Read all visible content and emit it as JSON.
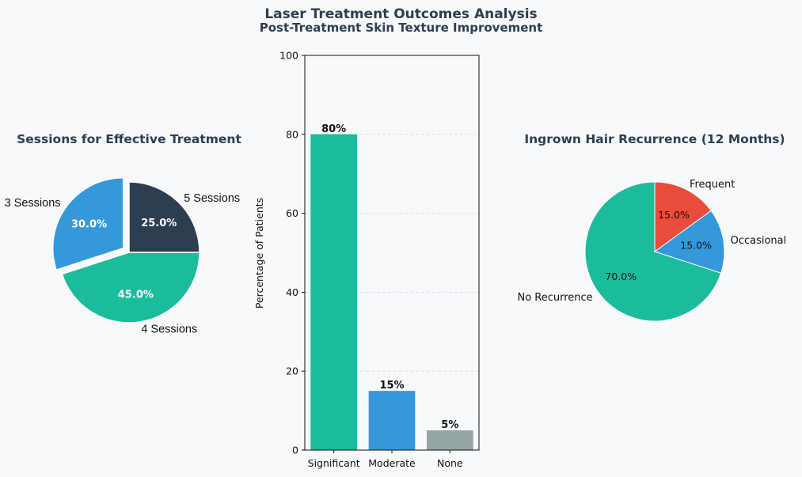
{
  "header": {
    "title": "Laser Treatment Outcomes Analysis",
    "subtitle": "Post-Treatment Skin Texture Improvement"
  },
  "chart_data": [
    {
      "type": "pie",
      "title": "Sessions for Effective Treatment",
      "labels": [
        "3 Sessions",
        "4 Sessions",
        "5 Sessions"
      ],
      "values": [
        30,
        45,
        25
      ],
      "pct_labels": [
        "30.0%",
        "45.0%",
        "25.0%"
      ],
      "colors": [
        "#3498db",
        "#1abc9c",
        "#2c3e50"
      ],
      "exploded": "3 Sessions",
      "start_angle_deg": 90
    },
    {
      "type": "bar",
      "title": "",
      "categories": [
        "Significant",
        "Moderate",
        "None"
      ],
      "values": [
        80,
        15,
        5
      ],
      "value_labels": [
        "80%",
        "15%",
        "5%"
      ],
      "colors": [
        "#1abc9c",
        "#3498db",
        "#95a5a6"
      ],
      "xlabel": "",
      "ylabel": "Percentage of Patients",
      "ylim": [
        0,
        100
      ],
      "yticks": [
        0,
        20,
        40,
        60,
        80,
        100
      ],
      "grid": "y-dashed"
    },
    {
      "type": "pie",
      "title": "Ingrown Hair Recurrence (12 Months)",
      "labels": [
        "No Recurrence",
        "Occasional",
        "Frequent"
      ],
      "values": [
        70,
        15,
        15
      ],
      "pct_labels": [
        "70.0%",
        "15.0%",
        "15.0%"
      ],
      "colors": [
        "#1abc9c",
        "#3498db",
        "#e74c3c"
      ],
      "start_angle_deg": 90
    }
  ]
}
